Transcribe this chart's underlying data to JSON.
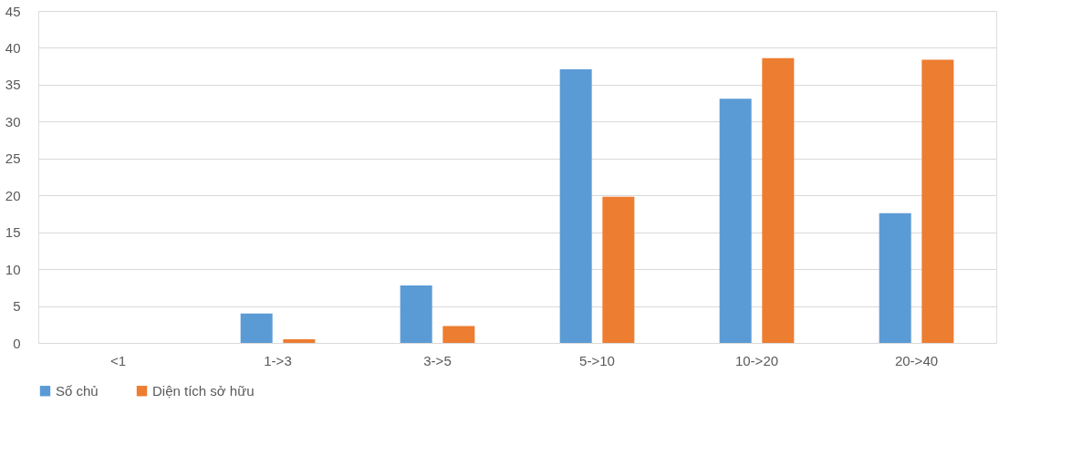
{
  "chart_data": {
    "type": "bar",
    "categories": [
      "<1",
      "1->3",
      "3->5",
      "5->10",
      "10->20",
      "20->40"
    ],
    "series": [
      {
        "name": "Số chủ",
        "color": "#5b9bd5",
        "values": [
          0,
          4.0,
          7.8,
          37.1,
          33.1,
          17.6
        ]
      },
      {
        "name": "Diện tích sở hữu",
        "color": "#ed7d31",
        "values": [
          0,
          0.5,
          2.3,
          19.8,
          38.6,
          38.4
        ]
      }
    ],
    "ylim": [
      0,
      45
    ],
    "yticks": [
      0,
      5,
      10,
      15,
      20,
      25,
      30,
      35,
      40,
      45
    ],
    "grid": "y",
    "legend": "bottom"
  }
}
